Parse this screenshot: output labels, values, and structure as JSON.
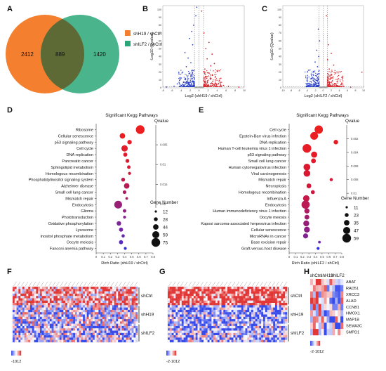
{
  "panel_labels": [
    "A",
    "B",
    "C",
    "D",
    "E",
    "F",
    "G",
    "H"
  ],
  "chart_data": [
    {
      "panel": "A",
      "type": "venn",
      "sets": [
        {
          "name": "shH19 / shCtrl",
          "color": "#f47f2f"
        },
        {
          "name": "shILF2 / shCtrl",
          "color": "#2aa779"
        }
      ],
      "only_first": 2412,
      "overlap": 889,
      "only_second": 1420
    },
    {
      "panel": "B",
      "type": "scatter",
      "xlabel": "Log2 (shH19 / shCtrl)",
      "ylabel": "-Log10 (Qvalue)",
      "x_ticks": [
        "-8",
        "-6",
        "-4",
        "-2",
        "0",
        "2",
        "4",
        "6",
        "8",
        "10"
      ],
      "y_ticks": [
        "0",
        "10",
        "20",
        "30",
        "40",
        "50",
        "60",
        "70",
        "80",
        "90",
        "100"
      ],
      "xlim": [
        -8,
        10
      ],
      "ylim": [
        0,
        105
      ],
      "series": [
        {
          "color": "#2b3fc4",
          "points": [
            [
              -0.5,
              103
            ],
            [
              -0.7,
              92
            ],
            [
              -1.2,
              80
            ],
            [
              -1.6,
              72
            ],
            [
              -2.1,
              63
            ],
            [
              -1.4,
              55
            ],
            [
              -3.1,
              45
            ],
            [
              -2.4,
              38
            ],
            [
              -1.8,
              32
            ],
            [
              -2.8,
              27
            ],
            [
              -1.3,
              22
            ],
            [
              -3.6,
              20
            ],
            [
              -2.2,
              18
            ],
            [
              -1.7,
              15
            ],
            [
              -4.2,
              13
            ],
            [
              -3.0,
              12
            ],
            [
              -2.5,
              10
            ],
            [
              -1.9,
              9
            ],
            [
              -1.4,
              8
            ],
            [
              -3.4,
              7
            ],
            [
              -2.8,
              6
            ],
            [
              -2.1,
              5
            ],
            [
              -1.6,
              4
            ],
            [
              -4.8,
              5
            ],
            [
              -1.2,
              3
            ],
            [
              -3.9,
              3
            ],
            [
              -2.6,
              2.5
            ],
            [
              -1.9,
              2
            ],
            [
              -1.3,
              1.6
            ],
            [
              -5.5,
              2
            ],
            [
              -7.2,
              1
            ]
          ]
        },
        {
          "color": "#d7282f",
          "points": [
            [
              0.6,
              98
            ],
            [
              1.1,
              70
            ],
            [
              2.2,
              58
            ],
            [
              1.5,
              50
            ],
            [
              2.9,
              43
            ],
            [
              1.8,
              37
            ],
            [
              3.4,
              31
            ],
            [
              2.6,
              28
            ],
            [
              1.3,
              24
            ],
            [
              4.1,
              21
            ],
            [
              2.1,
              19
            ],
            [
              3.0,
              16
            ],
            [
              1.6,
              14
            ],
            [
              4.8,
              12
            ],
            [
              2.5,
              11
            ],
            [
              3.6,
              10
            ],
            [
              1.9,
              9
            ],
            [
              1.3,
              7
            ],
            [
              2.8,
              6
            ],
            [
              4.3,
              5.5
            ],
            [
              3.2,
              4.5
            ],
            [
              2.0,
              4
            ],
            [
              1.5,
              3
            ],
            [
              5.4,
              3
            ],
            [
              3.8,
              2.5
            ],
            [
              2.6,
              2
            ],
            [
              1.8,
              1.5
            ],
            [
              6.5,
              2
            ],
            [
              8.8,
              1
            ]
          ]
        },
        {
          "color": "#a8a8a8",
          "points": [
            [
              0.4,
              1.5
            ],
            [
              -0.5,
              1.2
            ],
            [
              0.2,
              0.8
            ],
            [
              -0.3,
              0.5
            ],
            [
              0.7,
              0.4
            ],
            [
              -0.8,
              0.3
            ],
            [
              0.1,
              0.2
            ],
            [
              -0.1,
              0.6
            ]
          ]
        }
      ]
    },
    {
      "panel": "C",
      "type": "scatter",
      "xlabel": "Log2 (shILF2 / shCtrl)",
      "ylabel": "-Log10 (Qvalue)",
      "x_ticks": [
        "-10",
        "-8",
        "-6",
        "-4",
        "-2",
        "0",
        "2",
        "4",
        "6",
        "8",
        "10"
      ],
      "y_ticks": [
        "0",
        "10",
        "20",
        "30",
        "40",
        "50",
        "60",
        "70",
        "80",
        "90",
        "100"
      ],
      "xlim": [
        -10,
        10
      ],
      "ylim": [
        0,
        105
      ],
      "series": [
        {
          "color": "#2b3fc4",
          "points": [
            [
              -1.2,
              75
            ],
            [
              -0.9,
              60
            ],
            [
              -1.6,
              48
            ],
            [
              -1.1,
              40
            ],
            [
              -2.0,
              33
            ],
            [
              -1.4,
              27
            ],
            [
              -2.4,
              21
            ],
            [
              -1.0,
              18
            ],
            [
              -1.7,
              15
            ],
            [
              -2.9,
              12
            ],
            [
              -1.3,
              10
            ],
            [
              -2.2,
              8
            ],
            [
              -1.5,
              6
            ],
            [
              -3.5,
              5
            ],
            [
              -1.9,
              4
            ],
            [
              -1.2,
              3
            ],
            [
              -2.6,
              2.5
            ],
            [
              -1.4,
              1.8
            ],
            [
              -4.2,
              1.5
            ]
          ]
        },
        {
          "color": "#d7282f",
          "points": [
            [
              0.8,
              92
            ],
            [
              1.3,
              55
            ],
            [
              2.0,
              44
            ],
            [
              1.1,
              36
            ],
            [
              2.6,
              29
            ],
            [
              1.5,
              24
            ],
            [
              3.1,
              19
            ],
            [
              1.9,
              16
            ],
            [
              1.2,
              13
            ],
            [
              3.6,
              11
            ],
            [
              2.3,
              9
            ],
            [
              1.6,
              7
            ],
            [
              2.8,
              5.5
            ],
            [
              4.4,
              4
            ],
            [
              1.9,
              3.5
            ],
            [
              3.3,
              2.5
            ],
            [
              1.4,
              2
            ],
            [
              5.1,
              1.8
            ],
            [
              9.6,
              20
            ],
            [
              6.8,
              1
            ]
          ]
        },
        {
          "color": "#a8a8a8",
          "points": [
            [
              0.3,
              1.4
            ],
            [
              -0.4,
              1.1
            ],
            [
              0.1,
              0.7
            ],
            [
              -0.2,
              0.4
            ],
            [
              0.6,
              0.3
            ],
            [
              -0.7,
              0.2
            ]
          ]
        }
      ]
    },
    {
      "panel": "D",
      "type": "scatter",
      "title": "Significant Kegg Pathways",
      "xlabel": "Rich Ratio (shH19 / shCtrl)",
      "x_ticks": [
        "0",
        "0.1",
        "0.2",
        "0.3",
        "0.4",
        "0.5",
        "0.6",
        "0.7",
        "0.8"
      ],
      "xlim": [
        0,
        0.8
      ],
      "qvalue_label": "Qvalue",
      "qvalue_ticks": [
        "0.005",
        "0.01",
        "0.015",
        "0.02"
      ],
      "size_label": "Gene Number",
      "size_legend": [
        12,
        28,
        44,
        59,
        75
      ],
      "categories": [
        "Ribosome",
        "Cellular senescence",
        "p53 signaling pathway",
        "Cell cycle",
        "DNA replication",
        "Pancreatic cancer",
        "Sphingolipid metabolism",
        "Homologous recombination",
        "Phosphatidylinositol signaling system",
        "Alzheimer disease",
        "Small cell lung cancer",
        "Mismatch repair",
        "Endocytosis",
        "Glioma",
        "Phototransduction",
        "Oxidative phosphorylation",
        "Lysosome",
        "Inositol phosphate metabolism",
        "Oocyte meiosis",
        "Fanconi anemia pathway"
      ],
      "rich_ratio": [
        0.62,
        0.37,
        0.47,
        0.4,
        0.41,
        0.44,
        0.46,
        0.47,
        0.38,
        0.43,
        0.4,
        0.43,
        0.31,
        0.4,
        0.4,
        0.32,
        0.35,
        0.38,
        0.35,
        0.41
      ],
      "gene_number": [
        75,
        44,
        33,
        52,
        30,
        28,
        24,
        20,
        28,
        44,
        26,
        16,
        66,
        24,
        18,
        34,
        30,
        22,
        30,
        18
      ],
      "qvalue": [
        0.0002,
        0.0015,
        0.002,
        0.003,
        0.004,
        0.0045,
        0.006,
        0.007,
        0.009,
        0.01,
        0.011,
        0.012,
        0.013,
        0.014,
        0.015,
        0.016,
        0.017,
        0.018,
        0.019,
        0.022
      ]
    },
    {
      "panel": "E",
      "type": "scatter",
      "title": "Significant Kegg Pathways",
      "xlabel": "Rich Ratio (shILF2 / shCtrl)",
      "x_ticks": [
        "0",
        "0.1",
        "0.2",
        "0.3",
        "0.4",
        "0.5",
        "0.6",
        "0.7",
        "0.8"
      ],
      "xlim": [
        0,
        0.8
      ],
      "qvalue_label": "Qvalue",
      "qvalue_ticks": [
        "0.002",
        "0.004",
        "0.006",
        "0.008",
        "0.01"
      ],
      "size_label": "Gene Number",
      "size_legend": [
        11,
        23,
        35,
        47,
        59
      ],
      "categories": [
        "Cell cycle",
        "Epstein-Barr virus infection",
        "DNA replication",
        "Human T-cell leukemia virus 1 infection",
        "p53 signaling pathway",
        "Small cell lung cancer",
        "Human cytomegalovirus infection",
        "Viral carcinogenesis",
        "Mismatch repair",
        "Necroptosis",
        "Homologous recombination",
        "Influenza A",
        "Endocytosis",
        "Human immunodeficiency virus 1 infection",
        "Oocyte meiosis",
        "Kaposi sarcoma-associated herpesvirus infection",
        "Cellular senescence",
        "MicroRNAs in cancer",
        "Base excision repair",
        "Graft-versus-host disease"
      ],
      "rich_ratio": [
        0.45,
        0.38,
        0.71,
        0.27,
        0.38,
        0.37,
        0.27,
        0.27,
        0.64,
        0.3,
        0.36,
        0.26,
        0.25,
        0.27,
        0.27,
        0.26,
        0.27,
        0.25,
        0.46,
        0.44
      ],
      "gene_number": [
        56,
        52,
        28,
        59,
        40,
        30,
        45,
        44,
        18,
        30,
        24,
        42,
        55,
        33,
        30,
        38,
        38,
        32,
        14,
        16
      ],
      "qvalue": [
        0.0002,
        0.0005,
        0.0008,
        0.001,
        0.0012,
        0.0016,
        0.002,
        0.0025,
        0.003,
        0.0033,
        0.0036,
        0.004,
        0.0045,
        0.005,
        0.0055,
        0.006,
        0.0065,
        0.007,
        0.008,
        0.01
      ]
    },
    {
      "panel": "F",
      "type": "heatmap",
      "row_groups": [
        "shCtrl",
        "shH19",
        "shILF2"
      ],
      "color_scale": [
        "-1",
        "0",
        "1",
        "2"
      ]
    },
    {
      "panel": "G",
      "type": "heatmap",
      "row_groups": [
        "shCtrl",
        "shH19",
        "shILF2"
      ],
      "color_scale": [
        "-2",
        "-1",
        "0",
        "1",
        "2"
      ]
    },
    {
      "panel": "H",
      "type": "heatmap",
      "column_groups": [
        "shCtrl",
        "shH19",
        "shILF2"
      ],
      "genes": [
        "ABAT",
        "RAD51",
        "XRCC3",
        "ALAD",
        "CCNB1",
        "HMOX1",
        "MAP1B",
        "SEMA3C",
        "SMPD1"
      ],
      "color_scale": [
        "-2",
        "-1",
        "0",
        "1",
        "2"
      ]
    }
  ]
}
